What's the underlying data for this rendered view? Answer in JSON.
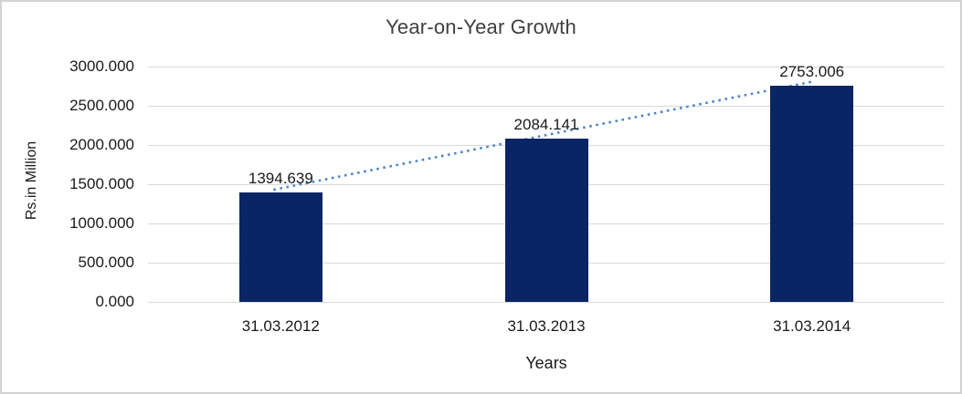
{
  "chart_data": {
    "type": "bar",
    "title": "Year-on-Year Growth",
    "xlabel": "Years",
    "ylabel": "Rs.in Million",
    "categories": [
      "31.03.2012",
      "31.03.2013",
      "31.03.2014"
    ],
    "values": [
      1394.639,
      2084.141,
      2753.006
    ],
    "data_labels": [
      "1394.639",
      "2084.141",
      "2753.006"
    ],
    "y_ticks": [
      {
        "value": 0,
        "label": "0.000"
      },
      {
        "value": 500,
        "label": "500.000"
      },
      {
        "value": 1000,
        "label": "1000.000"
      },
      {
        "value": 1500,
        "label": "1500.000"
      },
      {
        "value": 2000,
        "label": "2000.000"
      },
      {
        "value": 2500,
        "label": "2500.000"
      },
      {
        "value": 3000,
        "label": "3000.000"
      }
    ],
    "ylim": [
      0,
      3000
    ],
    "grid": true,
    "legend": "none",
    "trendline": {
      "style": "dotted",
      "from_category": "31.03.2012",
      "to_category": "31.03.2014"
    },
    "colors": {
      "bar": "#0a2564",
      "trendline": "#4f86c6",
      "gridline": "#d9d9d9",
      "border": "#d2d2d2",
      "text": "#1a1a1a",
      "title_text": "#404040",
      "background": "#ffffff"
    }
  }
}
